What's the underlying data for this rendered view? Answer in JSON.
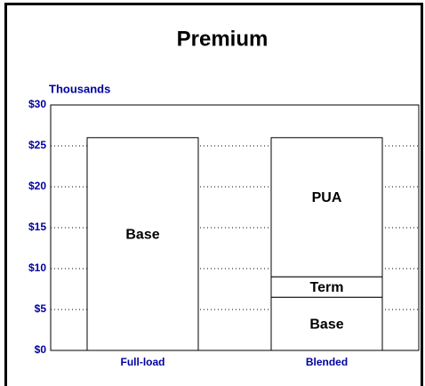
{
  "chart_data": {
    "type": "stacked_bar",
    "title": "Premium",
    "ylabel": "Thousands",
    "categories": [
      "Full-load",
      "Blended"
    ],
    "series": [
      {
        "name": "Base",
        "color": "#ffffff",
        "values": [
          26,
          6.5
        ]
      },
      {
        "name": "Term",
        "color": "#ffffff",
        "values": [
          0,
          2.5
        ]
      },
      {
        "name": "PUA",
        "color": "#ffffff",
        "values": [
          0,
          17
        ]
      }
    ],
    "ylim": [
      0,
      30
    ],
    "yticks": [
      {
        "value": 0,
        "label": "$0"
      },
      {
        "value": 5,
        "label": "$5"
      },
      {
        "value": 10,
        "label": "$10"
      },
      {
        "value": 15,
        "label": "$15"
      },
      {
        "value": 20,
        "label": "$20"
      },
      {
        "value": 25,
        "label": "$25"
      },
      {
        "value": 30,
        "label": "$30"
      }
    ],
    "grid": true
  }
}
